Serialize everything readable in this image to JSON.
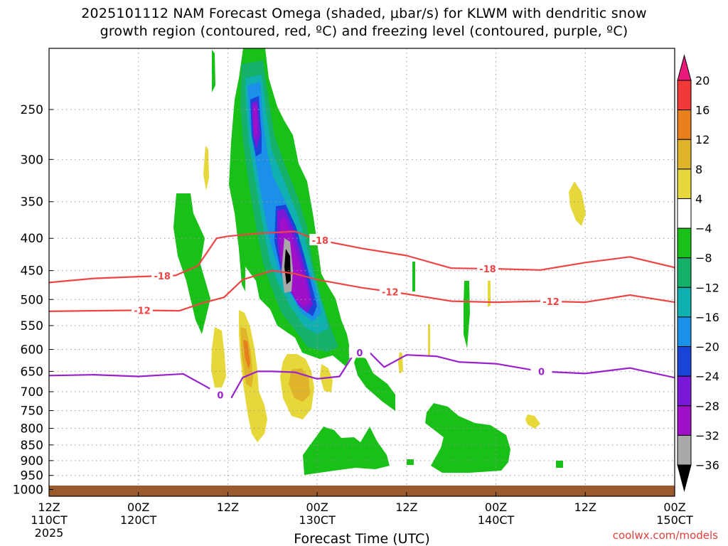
{
  "title": {
    "line1": "2025101112 NAM Forecast Omega (shaded, μbar/s) for KLWM with dendritic snow",
    "line2": "growth region (contoured, red, ºC) and freezing level (contoured, purple, ºC)"
  },
  "credit": "coolwx.com/models",
  "colors": {
    "snow_growth": "#ee4444",
    "freezing_level": "#9922cc",
    "ground": "#9a5a2b",
    "grid": "#999999"
  },
  "chart_data": {
    "type": "heatmap",
    "title": "2025101112 NAM Forecast Omega (shaded, μbar/s) for KLWM with dendritic snow growth region (contoured, red, ºC) and freezing level (contoured, purple, ºC)",
    "xlabel": "Forecast Time (UTC)",
    "ylabel": "",
    "x_ticks": [
      {
        "hours": 0,
        "label": [
          "12Z",
          "110CT",
          "2025"
        ]
      },
      {
        "hours": 12,
        "label": [
          "00Z",
          "120CT"
        ]
      },
      {
        "hours": 24,
        "label": [
          "12Z"
        ]
      },
      {
        "hours": 36,
        "label": [
          "00Z",
          "130CT"
        ]
      },
      {
        "hours": 48,
        "label": [
          "12Z"
        ]
      },
      {
        "hours": 60,
        "label": [
          "00Z",
          "140CT"
        ]
      },
      {
        "hours": 72,
        "label": [
          "12Z"
        ]
      },
      {
        "hours": 84,
        "label": [
          "00Z",
          "150CT"
        ]
      }
    ],
    "xlim": [
      0,
      84
    ],
    "y_ticks": [
      250,
      300,
      350,
      400,
      450,
      500,
      550,
      600,
      650,
      700,
      750,
      800,
      850,
      900,
      950,
      1000
    ],
    "ylim": [
      1025,
      200
    ],
    "y_scale": "log (pressure, hPa)",
    "colorbar": {
      "levels": [
        -36,
        -32,
        -28,
        -24,
        -20,
        -16,
        -12,
        -8,
        -4,
        4,
        8,
        12,
        16,
        20
      ],
      "labels": [
        "20",
        "16",
        "12",
        "8",
        "4",
        "−4",
        "−8",
        "−12",
        "−16",
        "−20",
        "−24",
        "−28",
        "−32",
        "−36"
      ],
      "colors": [
        "#ea1a7a",
        "#f03a3a",
        "#e8801e",
        "#e0b428",
        "#e6d83a",
        "#ffffff",
        "#18c018",
        "#15b06a",
        "#10b0b0",
        "#1a90e8",
        "#1a44d8",
        "#7a18d8",
        "#a010c8",
        "#a8a8a8",
        "#000000"
      ]
    },
    "series": [
      {
        "name": "-18",
        "label_points": [
          [
            15.2,
            "-18"
          ],
          [
            36.4,
            "-18"
          ],
          [
            58.9,
            "-18"
          ]
        ],
        "x": [
          0,
          6,
          12,
          17,
          20,
          22.5,
          24,
          28,
          33,
          36,
          42,
          48,
          54,
          60,
          66,
          72,
          78,
          84
        ],
        "p": [
          470,
          463,
          460,
          458,
          442,
          400,
          397,
          393,
          390,
          402,
          415,
          426,
          446,
          447,
          449,
          437,
          428,
          445
        ]
      },
      {
        "name": "-12",
        "label_points": [
          [
            12.5,
            "-12"
          ],
          [
            45.8,
            "-12"
          ],
          [
            67.4,
            "-12"
          ]
        ],
        "x": [
          0,
          6,
          12,
          17.5,
          20.5,
          23.5,
          26,
          30,
          33,
          36,
          42,
          48,
          54,
          60,
          66,
          72,
          78,
          84
        ],
        "p": [
          522,
          521,
          520,
          521,
          507,
          496,
          465,
          450,
          455,
          465,
          479,
          490,
          503,
          505,
          503,
          505,
          492,
          505
        ]
      },
      {
        "name": "0",
        "label_points": [
          [
            23,
            "0"
          ],
          [
            41.7,
            "0"
          ],
          [
            66.1,
            "0"
          ]
        ],
        "x": [
          0,
          6,
          12,
          18,
          21,
          23,
          24.5,
          26,
          28,
          30,
          33,
          36,
          39,
          41,
          43,
          45,
          48,
          52,
          55,
          60,
          66,
          72,
          78,
          84
        ],
        "p": [
          660,
          658,
          662,
          656,
          686,
          708,
          715,
          665,
          650,
          650,
          652,
          668,
          662,
          608,
          606,
          640,
          612,
          615,
          628,
          632,
          650,
          655,
          642,
          665
        ]
      }
    ],
    "omega_regions": [
      {
        "level": "-4 to -8",
        "x_range": [
          17.5,
          21.5
        ],
        "p_range": [
          350,
          540
        ]
      },
      {
        "level": "-4 to -8",
        "x_range": [
          25,
          42
        ],
        "p_range": [
          200,
          640
        ]
      },
      {
        "level": "-4 to -8",
        "x_range": [
          43,
          48
        ],
        "p_range": [
          635,
          760
        ]
      },
      {
        "level": "-4 to -8",
        "x_range": [
          35,
          46
        ],
        "p_range": [
          860,
          960
        ]
      },
      {
        "level": "-4 to -8",
        "x_range": [
          52.5,
          62
        ],
        "p_range": [
          760,
          950
        ]
      },
      {
        "level": "-24 to -32",
        "x_range": [
          28,
          30
        ],
        "p_range": [
          210,
          300
        ]
      },
      {
        "level": "-24 to -32",
        "x_range": [
          32.5,
          36
        ],
        "p_range": [
          380,
          560
        ]
      },
      {
        "level": "< -36",
        "x_range": [
          32.5,
          33.5
        ],
        "p_range": [
          445,
          490
        ]
      },
      {
        "level": "4 to 8",
        "x_range": [
          21.5,
          23
        ],
        "p_range": [
          600,
          720
        ]
      },
      {
        "level": "4 to 12",
        "x_range": [
          26,
          30
        ],
        "p_range": [
          540,
          890
        ]
      },
      {
        "level": "4 to 12",
        "x_range": [
          32,
          36
        ],
        "p_range": [
          635,
          790
        ]
      },
      {
        "level": "4 to 8",
        "x_range": [
          38.5,
          40.5
        ],
        "p_range": [
          650,
          720
        ]
      },
      {
        "level": "4 to 8",
        "x_range": [
          69.5,
          71.5
        ],
        "p_range": [
          345,
          395
        ]
      },
      {
        "level": "4 to 8",
        "x_range": [
          64.5,
          66.5
        ],
        "p_range": [
          790,
          825
        ]
      }
    ]
  }
}
